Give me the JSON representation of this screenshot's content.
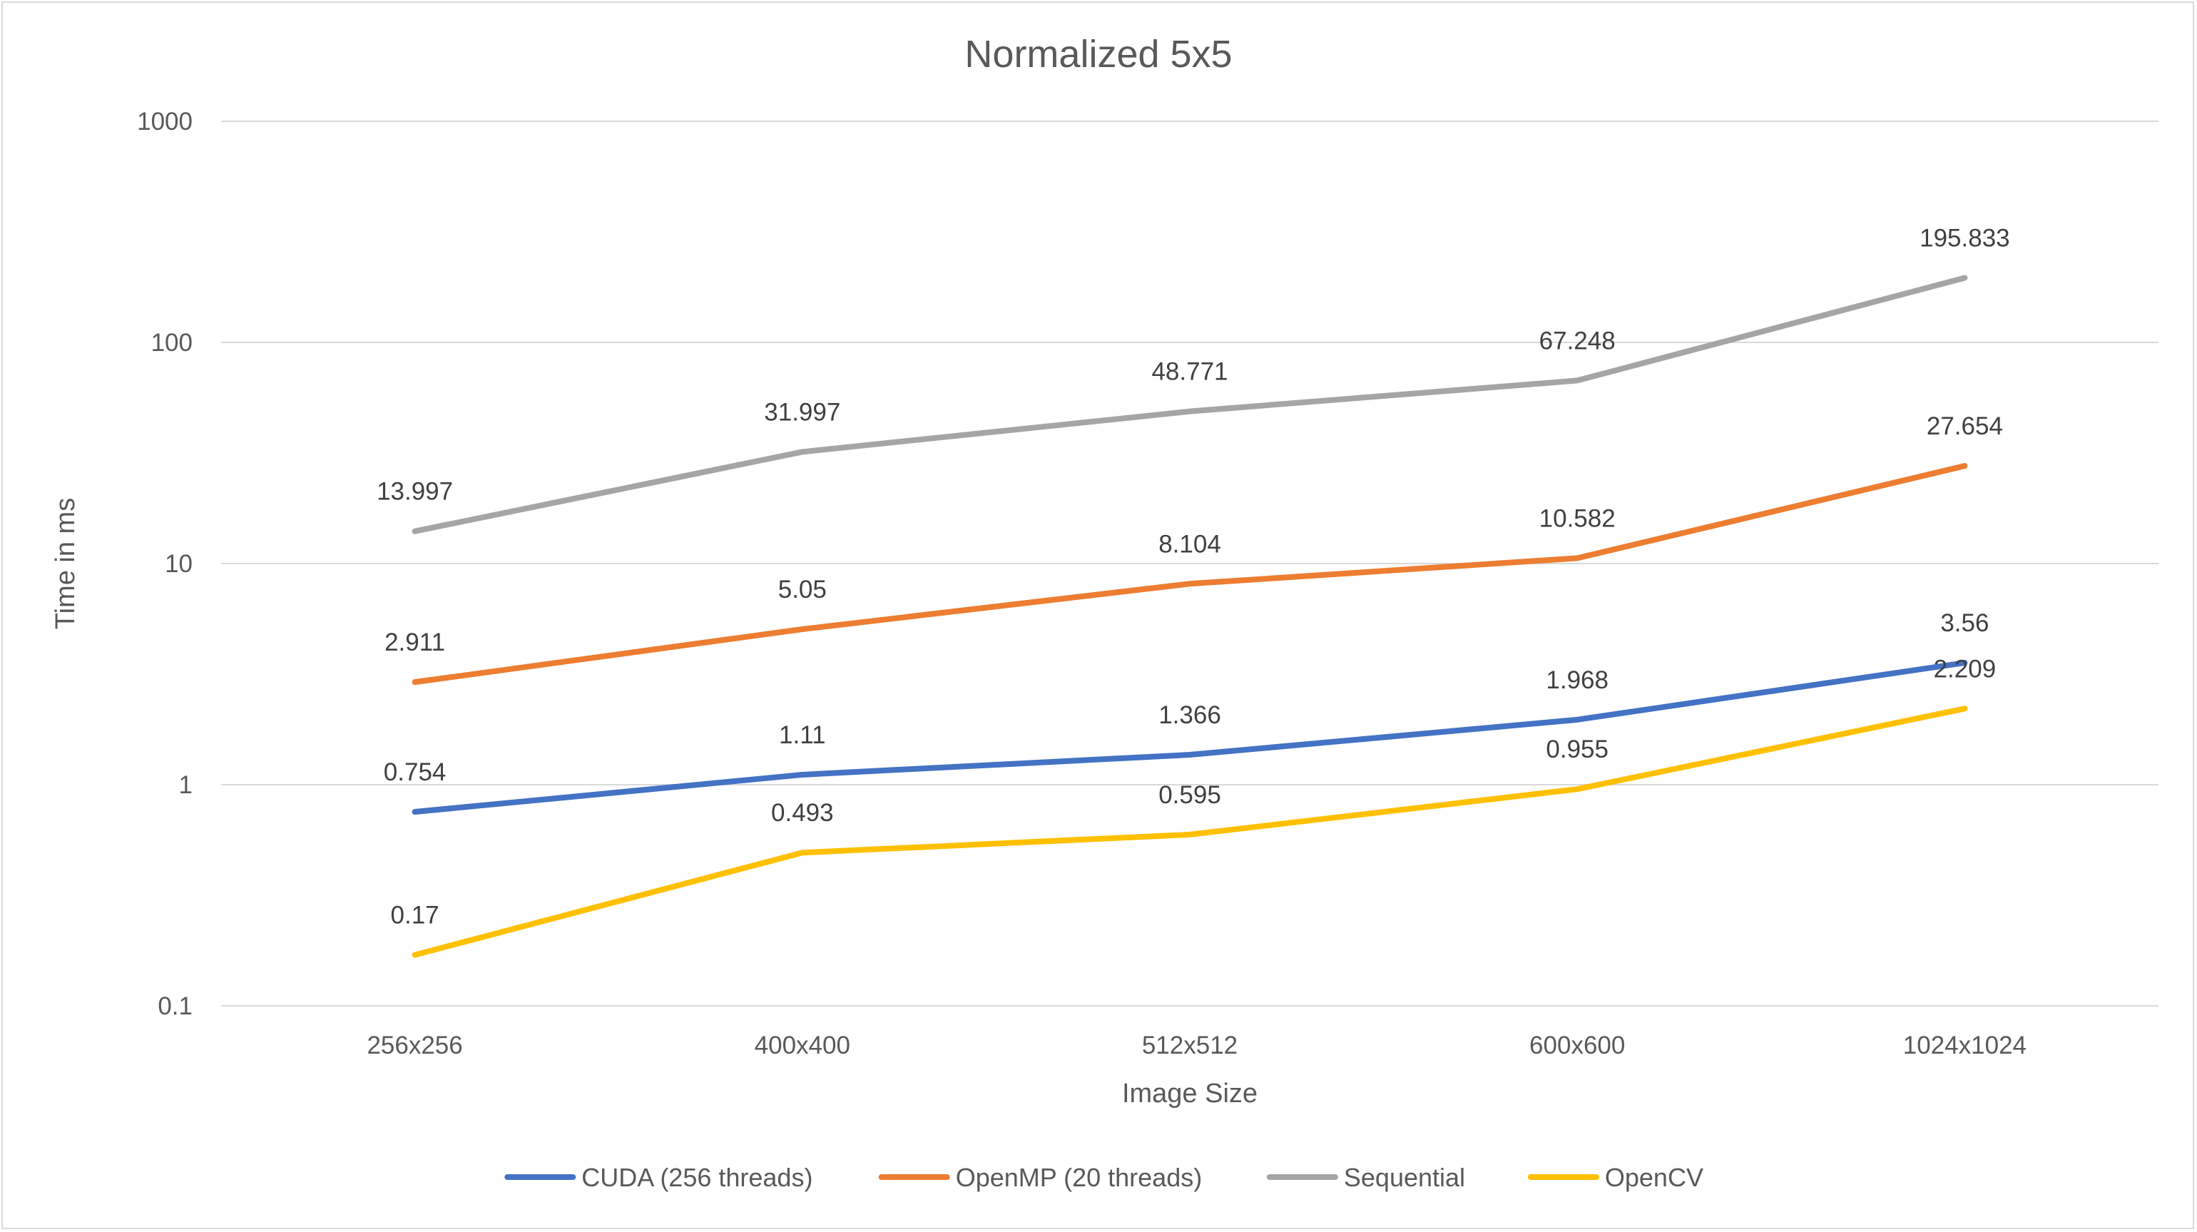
{
  "chart_data": {
    "type": "line",
    "title": "Normalized 5x5",
    "xlabel": "Image Size",
    "ylabel": "Time in ms",
    "y_scale": "log",
    "ylim": [
      0.1,
      1000
    ],
    "y_ticks": [
      "0.1",
      "1",
      "10",
      "100",
      "1000"
    ],
    "grid": true,
    "legend_position": "bottom",
    "categories": [
      "256x256",
      "400x400",
      "512x512",
      "600x600",
      "1024x1024"
    ],
    "series": [
      {
        "name": "CUDA (256 threads)",
        "color": "#4472c4",
        "values": [
          0.754,
          1.11,
          1.366,
          1.968,
          3.56
        ],
        "labels": [
          "0.754",
          "1.11",
          "1.366",
          "1.968",
          "3.56"
        ]
      },
      {
        "name": "OpenMP (20 threads)",
        "color": "#ed7d31",
        "values": [
          2.911,
          5.05,
          8.104,
          10.582,
          27.654
        ],
        "labels": [
          "2.911",
          "5.05",
          "8.104",
          "10.582",
          "27.654"
        ]
      },
      {
        "name": "Sequential",
        "color": "#a5a5a5",
        "values": [
          13.997,
          31.997,
          48.771,
          67.248,
          195.833
        ],
        "labels": [
          "13.997",
          "31.997",
          "48.771",
          "67.248",
          "195.833"
        ]
      },
      {
        "name": "OpenCV",
        "color": "#ffc000",
        "values": [
          0.17,
          0.493,
          0.595,
          0.955,
          2.209
        ],
        "labels": [
          "0.17",
          "0.493",
          "0.595",
          "0.955",
          "2.209"
        ]
      }
    ]
  }
}
